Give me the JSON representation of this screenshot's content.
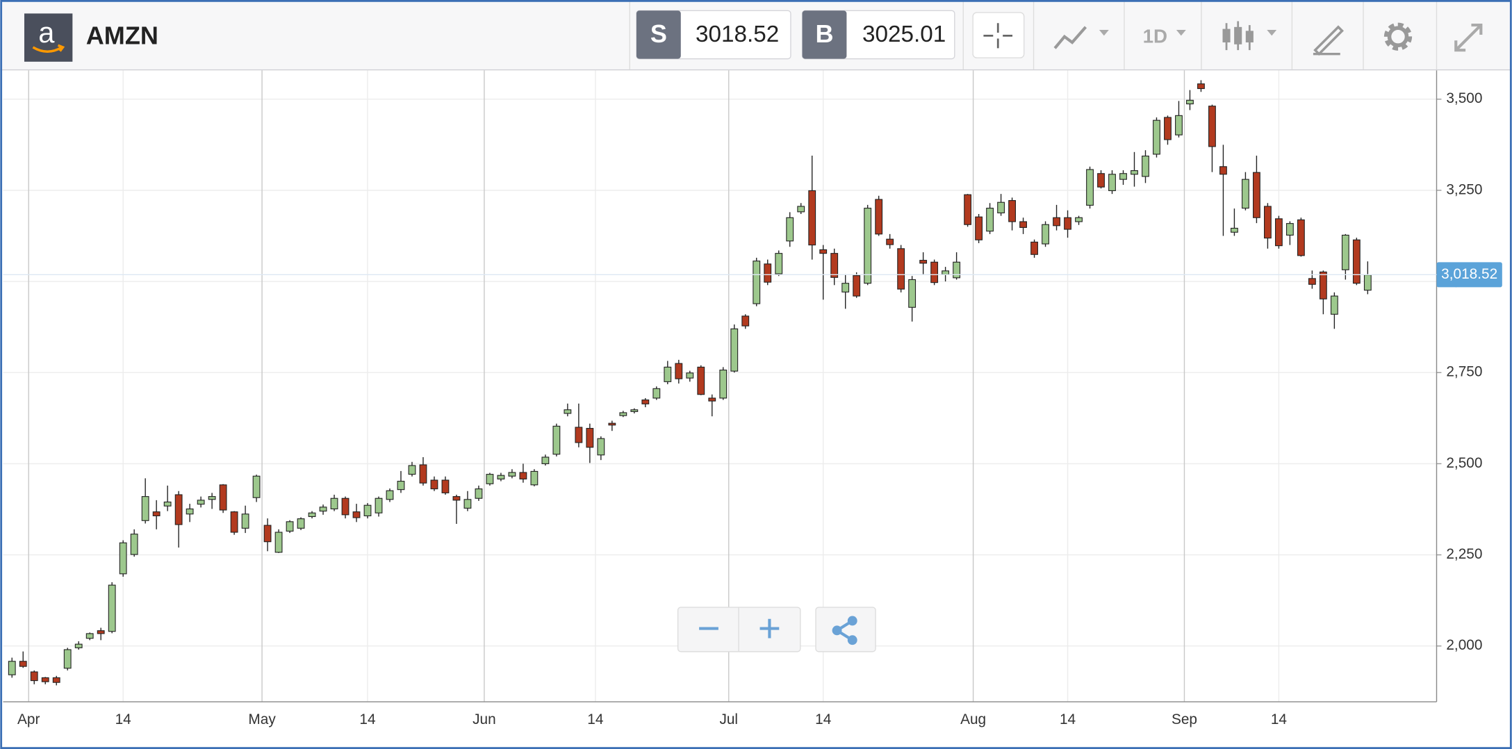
{
  "header": {
    "logo": "a",
    "symbol": "AMZN",
    "sell": {
      "label": "S",
      "price": 3018.52
    },
    "buy": {
      "label": "B",
      "price": 3025.01
    },
    "interval": "1D"
  },
  "chart_data": {
    "type": "candlestick",
    "up_color": "#9dc88d",
    "down_color": "#b23a1f",
    "grid": true,
    "open": [
      1921,
      1958,
      1929,
      1913,
      1913,
      1939,
      1995,
      2021,
      2042,
      2040,
      2198,
      2251,
      2344,
      2368,
      2384,
      2415,
      2362,
      2389,
      2402,
      2442,
      2368,
      2323,
      2407,
      2331,
      2257,
      2315,
      2323,
      2355,
      2370,
      2376,
      2405,
      2368,
      2357,
      2365,
      2402,
      2429,
      2471,
      2497,
      2455,
      2455,
      2410,
      2378,
      2405,
      2445,
      2458,
      2466,
      2476,
      2442,
      2500,
      2526,
      2638,
      2600,
      2597,
      2524,
      2611,
      2632,
      2643,
      2675,
      2680,
      2725,
      2775,
      2735,
      2765,
      2680,
      2680,
      2754,
      2905,
      2939,
      3048,
      3021,
      3111,
      3191,
      3249,
      3087,
      3077,
      2971,
      3016,
      2995,
      3225,
      3116,
      3090,
      2929,
      3058,
      3053,
      3019,
      3010,
      3238,
      3177,
      3138,
      3188,
      3222,
      3164,
      3108,
      3103,
      3175,
      3175,
      3164,
      3209,
      3296,
      3249,
      3280,
      3294,
      3288,
      3349,
      3450,
      3402,
      3487,
      3542,
      3481,
      3315,
      3135,
      3201,
      3299,
      3206,
      3172,
      3127,
      3169,
      3008,
      3026,
      2910,
      3032,
      3114,
      2976
    ],
    "high": [
      1968,
      1985,
      1933,
      1915,
      1918,
      1995,
      2013,
      2037,
      2050,
      2175,
      2290,
      2320,
      2460,
      2400,
      2440,
      2425,
      2390,
      2410,
      2420,
      2444,
      2370,
      2385,
      2470,
      2350,
      2320,
      2345,
      2353,
      2370,
      2388,
      2415,
      2410,
      2390,
      2392,
      2410,
      2432,
      2480,
      2505,
      2518,
      2465,
      2465,
      2415,
      2425,
      2440,
      2475,
      2475,
      2485,
      2500,
      2485,
      2525,
      2610,
      2665,
      2665,
      2610,
      2575,
      2618,
      2645,
      2652,
      2680,
      2712,
      2782,
      2785,
      2755,
      2770,
      2690,
      2765,
      2882,
      2910,
      3065,
      3060,
      3085,
      3190,
      3215,
      3345,
      3100,
      3090,
      3020,
      3025,
      3210,
      3235,
      3130,
      3100,
      3015,
      3080,
      3060,
      3040,
      3080,
      3240,
      3185,
      3215,
      3240,
      3230,
      3175,
      3115,
      3165,
      3210,
      3195,
      3180,
      3315,
      3305,
      3305,
      3305,
      3355,
      3360,
      3450,
      3455,
      3495,
      3525,
      3552,
      3485,
      3375,
      3200,
      3300,
      3345,
      3215,
      3180,
      3165,
      3175,
      3030,
      3030,
      2970,
      3130,
      3120,
      3055
    ],
    "low": [
      1913,
      1940,
      1895,
      1895,
      1892,
      1933,
      1990,
      2016,
      2016,
      2035,
      2190,
      2245,
      2336,
      2320,
      2370,
      2270,
      2340,
      2380,
      2376,
      2365,
      2305,
      2310,
      2395,
      2260,
      2255,
      2310,
      2318,
      2350,
      2360,
      2370,
      2350,
      2340,
      2350,
      2355,
      2395,
      2420,
      2465,
      2440,
      2425,
      2415,
      2335,
      2370,
      2398,
      2440,
      2452,
      2460,
      2448,
      2438,
      2495,
      2520,
      2630,
      2545,
      2502,
      2510,
      2590,
      2628,
      2638,
      2655,
      2675,
      2718,
      2720,
      2725,
      2688,
      2630,
      2675,
      2750,
      2870,
      2932,
      2990,
      3015,
      3095,
      3185,
      3060,
      2950,
      2990,
      2925,
      2955,
      2990,
      3125,
      3090,
      2970,
      2890,
      3020,
      2990,
      3000,
      3005,
      3150,
      3105,
      3130,
      3180,
      3140,
      3130,
      3065,
      3095,
      3140,
      3120,
      3155,
      3200,
      3255,
      3240,
      3265,
      3260,
      3270,
      3340,
      3375,
      3395,
      3470,
      3520,
      3300,
      3125,
      3125,
      3195,
      3160,
      3090,
      3090,
      3100,
      3068,
      2980,
      2910,
      2870,
      3005,
      2990,
      2965
    ],
    "close": [
      1958,
      1944,
      1905,
      1902,
      1900,
      1990,
      2005,
      2034,
      2034,
      2167,
      2283,
      2307,
      2410,
      2357,
      2395,
      2333,
      2376,
      2400,
      2410,
      2373,
      2312,
      2362,
      2466,
      2286,
      2312,
      2341,
      2349,
      2365,
      2381,
      2405,
      2360,
      2352,
      2386,
      2405,
      2426,
      2452,
      2495,
      2447,
      2431,
      2420,
      2400,
      2402,
      2431,
      2471,
      2468,
      2476,
      2458,
      2479,
      2518,
      2603,
      2648,
      2558,
      2545,
      2569,
      2606,
      2640,
      2648,
      2664,
      2706,
      2765,
      2733,
      2749,
      2690,
      2672,
      2757,
      2870,
      2878,
      3056,
      2998,
      3077,
      3175,
      3206,
      3100,
      3077,
      3011,
      2995,
      2960,
      3201,
      3130,
      3101,
      2979,
      3005,
      3050,
      2997,
      3029,
      3053,
      3156,
      3114,
      3201,
      3217,
      3164,
      3148,
      3074,
      3156,
      3153,
      3143,
      3175,
      3307,
      3259,
      3294,
      3296,
      3304,
      3344,
      3442,
      3389,
      3455,
      3497,
      3529,
      3370,
      3294,
      3146,
      3280,
      3175,
      3119,
      3098,
      3159,
      3071,
      2992,
      2952,
      2960,
      3127,
      2995,
      3018
    ],
    "xlim": [
      -0.8,
      128.2
    ],
    "xticks": [
      {
        "value": 1.5,
        "label": "Apr"
      },
      {
        "value": 10,
        "label": "14"
      },
      {
        "value": 22.5,
        "label": "May"
      },
      {
        "value": 32,
        "label": "14"
      },
      {
        "value": 42.5,
        "label": "Jun"
      },
      {
        "value": 52.5,
        "label": "14"
      },
      {
        "value": 64.5,
        "label": "Jul"
      },
      {
        "value": 73,
        "label": "14"
      },
      {
        "value": 86.5,
        "label": "Aug"
      },
      {
        "value": 95,
        "label": "14"
      },
      {
        "value": 105.5,
        "label": "Sep"
      },
      {
        "value": 114,
        "label": "14"
      }
    ],
    "ylim": [
      1847,
      3579
    ],
    "yticks": [
      {
        "value": 2000,
        "label": "2,000"
      },
      {
        "value": 2250,
        "label": "2,250"
      },
      {
        "value": 2500,
        "label": "2,500"
      },
      {
        "value": 2750,
        "label": "2,750"
      },
      {
        "value": 3000,
        "label": "3,000"
      },
      {
        "value": 3250,
        "label": "3,250"
      },
      {
        "value": 3500,
        "label": "3,500"
      }
    ],
    "last_price": {
      "value": 3018.52,
      "label": "3,018.52"
    }
  }
}
